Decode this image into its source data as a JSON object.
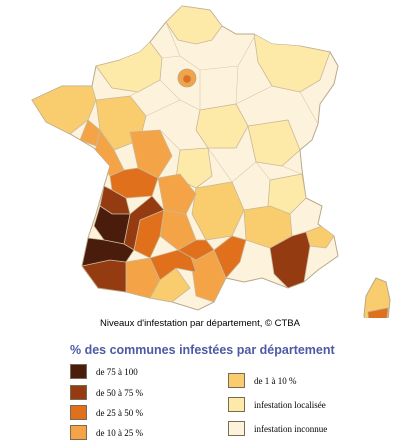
{
  "caption": "Niveaux d'infestation par département, © CTBA",
  "legend": {
    "title": "% des communes infestées par département",
    "items": [
      {
        "label": "de 75 à 100",
        "color": "#4a1c0c"
      },
      {
        "label": "de 50 à 75 %",
        "color": "#943b12"
      },
      {
        "label": "de 25 à 50 %",
        "color": "#e0701c"
      },
      {
        "label": "de 10 à 25 %",
        "color": "#f4a446"
      },
      {
        "label": "de 1 à 10 %",
        "color": "#f9cc6e"
      },
      {
        "label": "infestation localisée",
        "color": "#fdeaa8"
      },
      {
        "label": "infestation inconnue",
        "color": "#fdf3dd"
      }
    ]
  },
  "colors": {
    "border": "#b8a888",
    "title": "#4c5aa6"
  }
}
